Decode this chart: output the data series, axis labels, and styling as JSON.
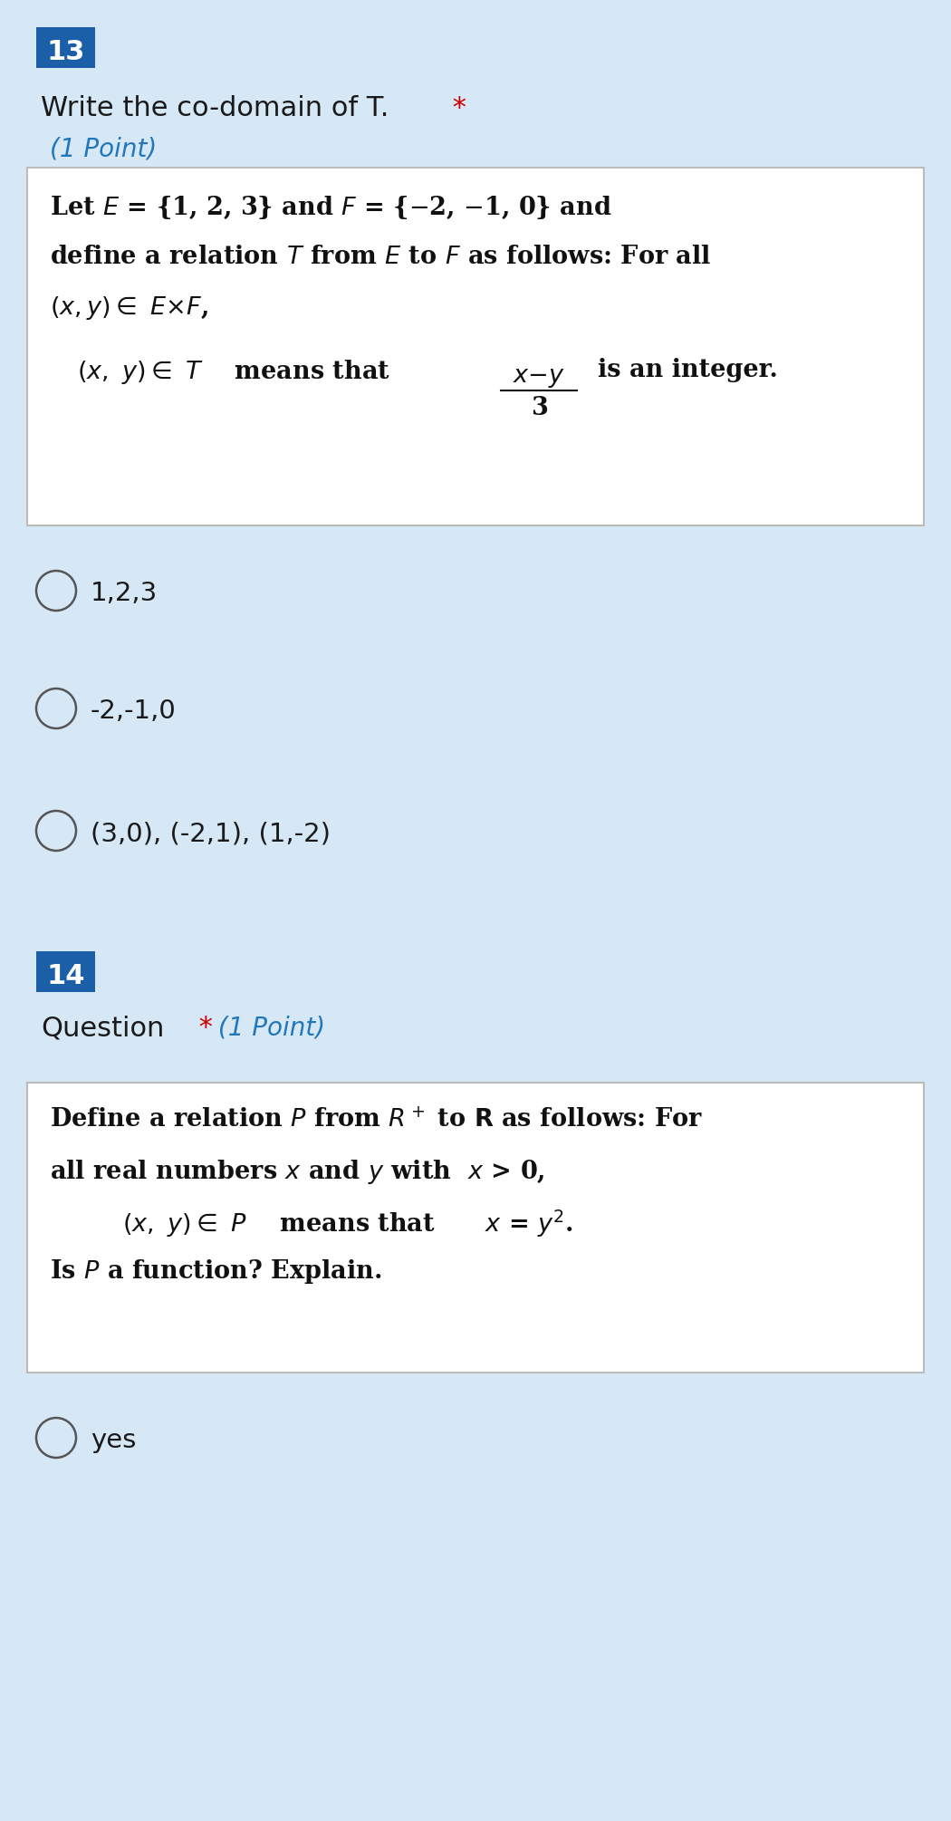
{
  "bg_color": "#d6e8f5",
  "q13_number": "13",
  "q13_number_bg": "#1a5fa8",
  "q13_number_color": "#ffffff",
  "q13_title": "Write the co-domain of T.",
  "q13_star_color": "#cc0000",
  "q13_points": "(1 Point)",
  "q13_points_color": "#2277bb",
  "box1_bg": "#ffffff",
  "box1_border": "#bbbbbb",
  "options_13": [
    "1,2,3",
    "-2,-1,0",
    "(3,0), (-2,1), (1,-2)"
  ],
  "q14_number": "14",
  "q14_number_bg": "#1a5fa8",
  "q14_number_color": "#ffffff",
  "q14_title": "Question",
  "q14_star_color": "#cc0000",
  "q14_points": "(1 Point)",
  "q14_points_color": "#2277bb",
  "box2_bg": "#ffffff",
  "box2_border": "#bbbbbb",
  "options_14": [
    "yes"
  ],
  "text_color": "#1a1a1a",
  "circle_color": "#555555"
}
